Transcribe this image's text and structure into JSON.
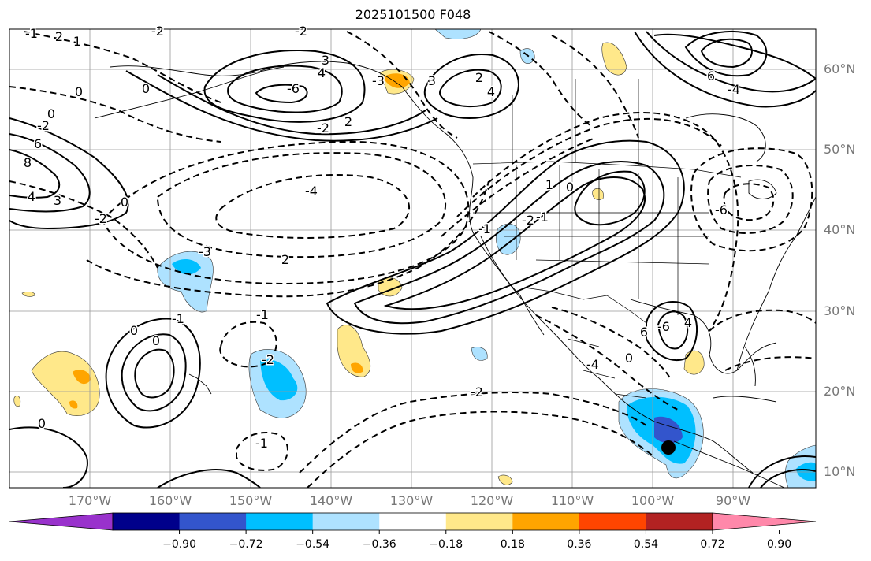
{
  "title": "2025101500 F048",
  "lat_labels": [
    "60°N",
    "50°N",
    "40°N",
    "30°N",
    "20°N",
    "10°N"
  ],
  "lon_labels": [
    "170°W",
    "160°W",
    "150°W",
    "140°W",
    "130°W",
    "120°W",
    "110°W",
    "100°W",
    "90°W"
  ],
  "colorbar": {
    "ticks": [
      "−0.90",
      "−0.72",
      "−0.54",
      "−0.36",
      "−0.18",
      "0.18",
      "0.36",
      "0.54",
      "0.72",
      "0.90"
    ],
    "colors": [
      "#9932cc",
      "#00008b",
      "#3355cc",
      "#00bfff",
      "#aee2ff",
      "#ffffff",
      "#ffe88a",
      "#ffa500",
      "#ff4500",
      "#b22222",
      "#ff88aa"
    ]
  },
  "contour_labels": [
    "2",
    "1",
    "-2",
    "0",
    "0",
    "0",
    "-2",
    "8",
    "4",
    "3",
    "0",
    "-2",
    "6",
    "3",
    "-6",
    "4",
    "-2",
    "2",
    "-4",
    "-3",
    "2",
    "3",
    "4",
    "-2",
    "-1",
    "0",
    "-2",
    "-1",
    "0",
    "-1",
    "-2",
    "-4",
    "0",
    "-6",
    "6",
    "4",
    "0",
    "-1",
    "-1",
    "0",
    "-6",
    "6",
    "-4",
    "2",
    "-3",
    "-1",
    "-2",
    "1"
  ],
  "marker": "black-dot"
}
